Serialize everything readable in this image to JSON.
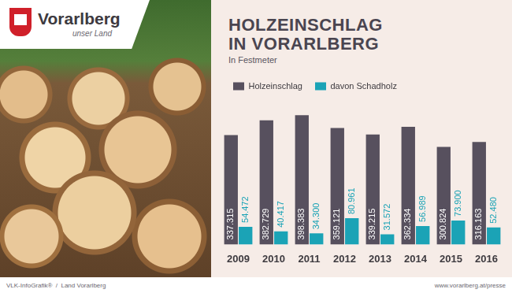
{
  "logo": {
    "name": "Vorarlberg",
    "tagline": "unser Land"
  },
  "chart_data": {
    "type": "bar",
    "title": "HOLZEINSCHLAG IN VORARLBERG",
    "subtitle": "In Festmeter",
    "categories": [
      "2009",
      "2010",
      "2011",
      "2012",
      "2013",
      "2014",
      "2015",
      "2016"
    ],
    "series": [
      {
        "name": "Holzeinschlag",
        "color": "#57505e",
        "values": [
          337315,
          382729,
          398383,
          359121,
          339215,
          362334,
          300824,
          316163
        ],
        "value_labels": [
          "337.315",
          "382.729",
          "398.383",
          "359.121",
          "339.215",
          "362.334",
          "300.824",
          "316.163"
        ]
      },
      {
        "name": "davon Schadholz",
        "color": "#1ba3b6",
        "values": [
          54472,
          40417,
          34300,
          80961,
          31572,
          56989,
          73900,
          52480
        ],
        "value_labels": [
          "54.472",
          "40.417",
          "34.300",
          "80.961",
          "31.572",
          "56.989",
          "73.900",
          "52.480"
        ]
      }
    ],
    "ylim": [
      0,
      450000
    ],
    "grid": false,
    "legend": "top-left",
    "data_labels": true,
    "tick_labels": "x"
  },
  "footer": {
    "left": "VLK-InfoGrafik®  /  Land Vorarlberg",
    "right": "www.vorarlberg.at/presse"
  }
}
